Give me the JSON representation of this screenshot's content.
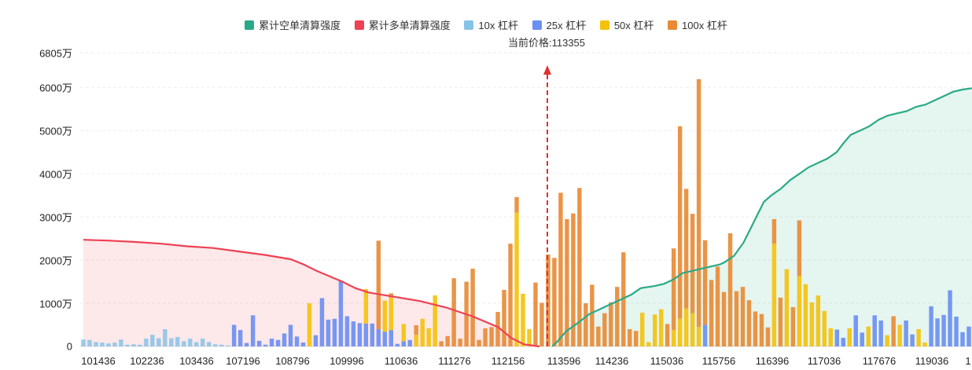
{
  "chart_data": {
    "type": "bar",
    "title": "",
    "current_price_label": "当前价格:113355",
    "current_price": 113355,
    "legend": [
      {
        "name": "累计空单清算强度",
        "color": "#2aa987"
      },
      {
        "name": "累计多单清算强度",
        "color": "#ee4152"
      },
      {
        "name": "10x 杠杆",
        "color": "#86c3e8"
      },
      {
        "name": "25x 杠杆",
        "color": "#6b8ff2"
      },
      {
        "name": "50x 杠杆",
        "color": "#f4c20d"
      },
      {
        "name": "100x 杠杆",
        "color": "#e88b36"
      }
    ],
    "ylim": [
      0,
      6805
    ],
    "y_ticks": [
      "0",
      "1000万",
      "2000万",
      "3000万",
      "4000万",
      "5000万",
      "6000万",
      "6805万"
    ],
    "x_ticks": [
      "101436",
      "102236",
      "103436",
      "107196",
      "108796",
      "109996",
      "110636",
      "111276",
      "112156",
      "113596",
      "114236",
      "115036",
      "115756",
      "116396",
      "117036",
      "117676",
      "119036",
      "1"
    ],
    "leverage_order": [
      "10x",
      "25x",
      "50x",
      "100x"
    ],
    "bars": [
      [
        160,
        0,
        0,
        0
      ],
      [
        150,
        0,
        0,
        0
      ],
      [
        100,
        0,
        0,
        0
      ],
      [
        90,
        0,
        0,
        0
      ],
      [
        70,
        0,
        0,
        0
      ],
      [
        90,
        0,
        0,
        0
      ],
      [
        160,
        0,
        0,
        0
      ],
      [
        40,
        0,
        0,
        0
      ],
      [
        50,
        0,
        0,
        0
      ],
      [
        40,
        0,
        0,
        0
      ],
      [
        180,
        0,
        0,
        0
      ],
      [
        270,
        0,
        0,
        0
      ],
      [
        190,
        0,
        0,
        0
      ],
      [
        400,
        0,
        0,
        0
      ],
      [
        190,
        0,
        0,
        0
      ],
      [
        220,
        0,
        0,
        0
      ],
      [
        120,
        0,
        0,
        0
      ],
      [
        180,
        0,
        0,
        0
      ],
      [
        100,
        0,
        0,
        0
      ],
      [
        180,
        0,
        0,
        0
      ],
      [
        100,
        0,
        0,
        0
      ],
      [
        50,
        0,
        0,
        0
      ],
      [
        40,
        0,
        0,
        0
      ],
      [
        20,
        0,
        0,
        0
      ],
      [
        0,
        500,
        0,
        0
      ],
      [
        0,
        380,
        0,
        0
      ],
      [
        0,
        80,
        0,
        0
      ],
      [
        0,
        720,
        0,
        0
      ],
      [
        0,
        130,
        0,
        0
      ],
      [
        0,
        40,
        0,
        0
      ],
      [
        0,
        180,
        0,
        0
      ],
      [
        0,
        150,
        0,
        0
      ],
      [
        0,
        300,
        0,
        0
      ],
      [
        0,
        500,
        0,
        0
      ],
      [
        0,
        230,
        0,
        0
      ],
      [
        0,
        90,
        0,
        0
      ],
      [
        0,
        0,
        1000,
        0
      ],
      [
        0,
        260,
        0,
        0
      ],
      [
        0,
        1120,
        0,
        0
      ],
      [
        0,
        620,
        0,
        0
      ],
      [
        0,
        640,
        0,
        0
      ],
      [
        0,
        1520,
        0,
        0
      ],
      [
        0,
        700,
        0,
        0
      ],
      [
        0,
        580,
        0,
        0
      ],
      [
        0,
        540,
        0,
        0
      ],
      [
        0,
        530,
        800,
        0
      ],
      [
        0,
        530,
        0,
        0
      ],
      [
        0,
        400,
        0,
        2050
      ],
      [
        0,
        340,
        720,
        0
      ],
      [
        0,
        380,
        750,
        100
      ],
      [
        0,
        60,
        0,
        0
      ],
      [
        0,
        120,
        400,
        0
      ],
      [
        0,
        150,
        0,
        0
      ],
      [
        0,
        0,
        270,
        220
      ],
      [
        0,
        0,
        640,
        0
      ],
      [
        0,
        0,
        420,
        0
      ],
      [
        0,
        0,
        1180,
        0
      ],
      [
        0,
        0,
        0,
        120
      ],
      [
        0,
        0,
        0,
        240
      ],
      [
        0,
        0,
        0,
        1580
      ],
      [
        0,
        0,
        0,
        180
      ],
      [
        0,
        0,
        0,
        1500
      ],
      [
        0,
        0,
        0,
        1800
      ],
      [
        0,
        0,
        0,
        150
      ],
      [
        0,
        0,
        0,
        420
      ],
      [
        0,
        0,
        0,
        450
      ],
      [
        0,
        0,
        0,
        800
      ],
      [
        0,
        0,
        0,
        1310
      ],
      [
        0,
        0,
        0,
        2380
      ],
      [
        0,
        0,
        3100,
        360
      ],
      [
        0,
        0,
        1220,
        0
      ],
      [
        0,
        0,
        400,
        0
      ],
      [
        0,
        0,
        0,
        1480
      ],
      [
        0,
        0,
        0,
        1010
      ],
      [
        0,
        0,
        0,
        2130
      ],
      [
        0,
        0,
        0,
        2050
      ],
      [
        0,
        0,
        0,
        3560
      ],
      [
        0,
        0,
        0,
        2950
      ],
      [
        0,
        0,
        0,
        3080
      ],
      [
        0,
        0,
        0,
        3670
      ],
      [
        0,
        0,
        0,
        1000
      ],
      [
        0,
        0,
        0,
        1430
      ],
      [
        0,
        0,
        0,
        460
      ],
      [
        0,
        0,
        0,
        770
      ],
      [
        0,
        0,
        0,
        1020
      ],
      [
        0,
        0,
        0,
        1380
      ],
      [
        0,
        0,
        0,
        2180
      ],
      [
        0,
        0,
        0,
        400
      ],
      [
        0,
        0,
        0,
        360
      ],
      [
        0,
        0,
        780,
        0
      ],
      [
        0,
        0,
        100,
        0
      ],
      [
        0,
        0,
        740,
        0
      ],
      [
        0,
        0,
        860,
        0
      ],
      [
        0,
        0,
        0,
        520
      ],
      [
        0,
        0,
        380,
        1890
      ],
      [
        0,
        0,
        640,
        4460
      ],
      [
        0,
        0,
        880,
        2770
      ],
      [
        0,
        0,
        770,
        2300
      ],
      [
        0,
        0,
        450,
        5740
      ],
      [
        0,
        500,
        0,
        1960
      ],
      [
        0,
        0,
        0,
        1540
      ],
      [
        0,
        0,
        0,
        1850
      ],
      [
        0,
        0,
        0,
        1260
      ],
      [
        0,
        0,
        0,
        2620
      ],
      [
        0,
        0,
        0,
        1280
      ],
      [
        0,
        0,
        0,
        1380
      ],
      [
        0,
        0,
        0,
        1070
      ],
      [
        0,
        0,
        0,
        810
      ],
      [
        0,
        0,
        0,
        750
      ],
      [
        0,
        0,
        0,
        440
      ],
      [
        0,
        0,
        2380,
        570
      ],
      [
        0,
        0,
        0,
        1130
      ],
      [
        0,
        0,
        1790,
        0
      ],
      [
        0,
        0,
        0,
        910
      ],
      [
        0,
        0,
        1630,
        1290
      ],
      [
        0,
        0,
        1440,
        0
      ],
      [
        0,
        0,
        1020,
        0
      ],
      [
        0,
        0,
        1180,
        0
      ],
      [
        0,
        0,
        820,
        0
      ],
      [
        0,
        0,
        420,
        0
      ],
      [
        0,
        390,
        0,
        0
      ],
      [
        0,
        200,
        0,
        0
      ],
      [
        0,
        0,
        420,
        0
      ],
      [
        0,
        720,
        0,
        0
      ],
      [
        0,
        320,
        0,
        0
      ],
      [
        0,
        0,
        460,
        0
      ],
      [
        0,
        720,
        0,
        0
      ],
      [
        0,
        600,
        0,
        0
      ],
      [
        0,
        0,
        260,
        0
      ],
      [
        0,
        0,
        0,
        700
      ],
      [
        0,
        0,
        500,
        0
      ],
      [
        0,
        600,
        0,
        0
      ],
      [
        0,
        280,
        0,
        0
      ],
      [
        0,
        0,
        400,
        0
      ],
      [
        0,
        0,
        90,
        0
      ],
      [
        0,
        930,
        0,
        0
      ],
      [
        0,
        650,
        0,
        0
      ],
      [
        0,
        730,
        0,
        0
      ],
      [
        0,
        1300,
        0,
        0
      ],
      [
        0,
        690,
        0,
        0
      ],
      [
        0,
        330,
        0,
        0
      ],
      [
        0,
        460,
        0,
        0
      ]
    ],
    "short_cumulative": [
      [
        0,
        0
      ],
      [
        60,
        120
      ],
      [
        90,
        200
      ],
      [
        150,
        350
      ],
      [
        280,
        550
      ],
      [
        400,
        750
      ],
      [
        600,
        950
      ],
      [
        850,
        1200
      ],
      [
        950,
        1350
      ],
      [
        1100,
        1400
      ],
      [
        1200,
        1450
      ],
      [
        1300,
        1550
      ],
      [
        1400,
        1700
      ],
      [
        1500,
        1750
      ],
      [
        1600,
        1800
      ],
      [
        1700,
        1850
      ],
      [
        1800,
        1900
      ],
      [
        1850,
        1950
      ],
      [
        1950,
        2100
      ],
      [
        2050,
        2400
      ],
      [
        2120,
        2700
      ],
      [
        2200,
        3050
      ],
      [
        2270,
        3350
      ],
      [
        2350,
        3500
      ],
      [
        2450,
        3650
      ],
      [
        2550,
        3850
      ],
      [
        2650,
        4000
      ],
      [
        2750,
        4150
      ],
      [
        2850,
        4250
      ],
      [
        2950,
        4350
      ],
      [
        3050,
        4500
      ],
      [
        3120,
        4700
      ],
      [
        3200,
        4900
      ],
      [
        3300,
        5000
      ],
      [
        3400,
        5100
      ],
      [
        3500,
        5250
      ],
      [
        3600,
        5350
      ],
      [
        3700,
        5400
      ],
      [
        3800,
        5450
      ],
      [
        3900,
        5550
      ],
      [
        4000,
        5600
      ],
      [
        4100,
        5700
      ],
      [
        4200,
        5800
      ],
      [
        4300,
        5900
      ],
      [
        4400,
        5950
      ],
      [
        4500,
        5980
      ]
    ],
    "long_cumulative": [
      [
        0,
        2470
      ],
      [
        100,
        2450
      ],
      [
        200,
        2420
      ],
      [
        300,
        2380
      ],
      [
        400,
        2320
      ],
      [
        500,
        2280
      ],
      [
        600,
        2200
      ],
      [
        700,
        2120
      ],
      [
        800,
        2020
      ],
      [
        850,
        1900
      ],
      [
        900,
        1750
      ],
      [
        1000,
        1500
      ],
      [
        1050,
        1350
      ],
      [
        1100,
        1250
      ],
      [
        1200,
        1150
      ],
      [
        1300,
        1050
      ],
      [
        1400,
        900
      ],
      [
        1500,
        700
      ],
      [
        1600,
        450
      ],
      [
        1650,
        200
      ],
      [
        1700,
        50
      ],
      [
        1760,
        0
      ]
    ]
  }
}
